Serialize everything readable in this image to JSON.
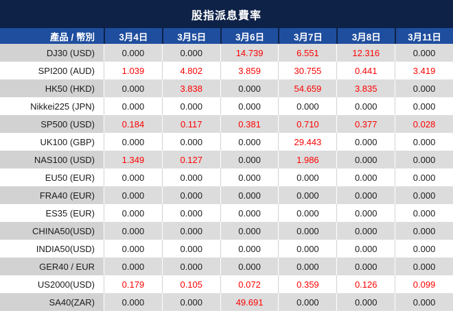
{
  "chart_data": {
    "type": "table",
    "title": "股指派息費率",
    "label_header": "產品 / 幣別",
    "date_headers": [
      "3月4日",
      "3月5日",
      "3月6日",
      "3月7日",
      "3月8日",
      "3月11日"
    ],
    "rows": [
      {
        "label": "DJ30 (USD)",
        "values": [
          "0.000",
          "0.000",
          "14.739",
          "6.551",
          "12.316",
          "0.000"
        ],
        "red": [
          0,
          0,
          1,
          1,
          1,
          0
        ]
      },
      {
        "label": "SPI200 (AUD)",
        "values": [
          "1.039",
          "4.802",
          "3.859",
          "30.755",
          "0.441",
          "3.419"
        ],
        "red": [
          1,
          1,
          1,
          1,
          1,
          1
        ]
      },
      {
        "label": "HK50 (HKD)",
        "values": [
          "0.000",
          "3.838",
          "0.000",
          "54.659",
          "3.835",
          "0.000"
        ],
        "red": [
          0,
          1,
          0,
          1,
          1,
          0
        ]
      },
      {
        "label": "Nikkei225 (JPN)",
        "values": [
          "0.000",
          "0.000",
          "0.000",
          "0.000",
          "0.000",
          "0.000"
        ],
        "red": [
          0,
          0,
          0,
          0,
          0,
          0
        ]
      },
      {
        "label": "SP500 (USD)",
        "values": [
          "0.184",
          "0.117",
          "0.381",
          "0.710",
          "0.377",
          "0.028"
        ],
        "red": [
          1,
          1,
          1,
          1,
          1,
          1
        ]
      },
      {
        "label": "UK100 (GBP)",
        "values": [
          "0.000",
          "0.000",
          "0.000",
          "29.443",
          "0.000",
          "0.000"
        ],
        "red": [
          0,
          0,
          0,
          1,
          0,
          0
        ]
      },
      {
        "label": "NAS100 (USD)",
        "values": [
          "1.349",
          "0.127",
          "0.000",
          "1.986",
          "0.000",
          "0.000"
        ],
        "red": [
          1,
          1,
          0,
          1,
          0,
          0
        ]
      },
      {
        "label": "EU50 (EUR)",
        "values": [
          "0.000",
          "0.000",
          "0.000",
          "0.000",
          "0.000",
          "0.000"
        ],
        "red": [
          0,
          0,
          0,
          0,
          0,
          0
        ]
      },
      {
        "label": "FRA40 (EUR)",
        "values": [
          "0.000",
          "0.000",
          "0.000",
          "0.000",
          "0.000",
          "0.000"
        ],
        "red": [
          0,
          0,
          0,
          0,
          0,
          0
        ]
      },
      {
        "label": "ES35 (EUR)",
        "values": [
          "0.000",
          "0.000",
          "0.000",
          "0.000",
          "0.000",
          "0.000"
        ],
        "red": [
          0,
          0,
          0,
          0,
          0,
          0
        ]
      },
      {
        "label": "CHINA50(USD)",
        "values": [
          "0.000",
          "0.000",
          "0.000",
          "0.000",
          "0.000",
          "0.000"
        ],
        "red": [
          0,
          0,
          0,
          0,
          0,
          0
        ]
      },
      {
        "label": "INDIA50(USD)",
        "values": [
          "0.000",
          "0.000",
          "0.000",
          "0.000",
          "0.000",
          "0.000"
        ],
        "red": [
          0,
          0,
          0,
          0,
          0,
          0
        ]
      },
      {
        "label": "GER40 / EUR",
        "values": [
          "0.000",
          "0.000",
          "0.000",
          "0.000",
          "0.000",
          "0.000"
        ],
        "red": [
          0,
          0,
          0,
          0,
          0,
          0
        ]
      },
      {
        "label": "US2000(USD)",
        "values": [
          "0.179",
          "0.105",
          "0.072",
          "0.359",
          "0.126",
          "0.099"
        ],
        "red": [
          1,
          1,
          1,
          1,
          1,
          1
        ]
      },
      {
        "label": "SA40(ZAR)",
        "values": [
          "0.000",
          "0.000",
          "49.691",
          "0.000",
          "0.000",
          "0.000"
        ],
        "red": [
          0,
          0,
          1,
          0,
          0,
          0
        ]
      }
    ]
  },
  "colors": {
    "title_bg": "#0e2247",
    "header_bg": "#1f4e9e",
    "row_gray_label": "#d2d2d2",
    "row_gray_value": "#dcdcdc",
    "value_red": "#fe0000",
    "value_black": "#1a1a1a"
  }
}
